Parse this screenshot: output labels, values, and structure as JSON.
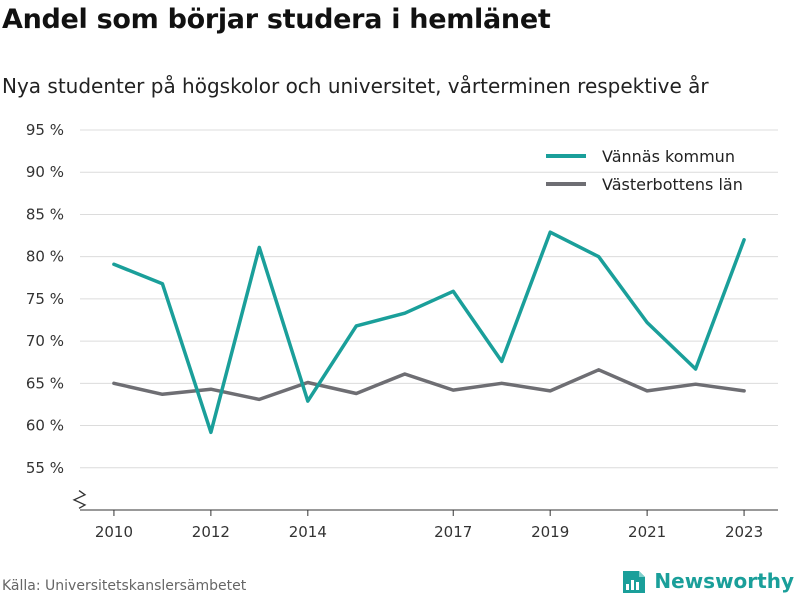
{
  "title": "Andel som börjar studera i hemlänet",
  "subtitle": "Nya studenter på högskolor och universitet, vårterminen respektive år",
  "source": "Källa: Universitetskanslersämbetet",
  "brand": {
    "name": "Newsworthy",
    "icon": "newsworthy-logo-icon",
    "color": "#1a9f9a"
  },
  "chart_data": {
    "type": "line",
    "x": [
      2010,
      2011,
      2012,
      2013,
      2014,
      2015,
      2016,
      2017,
      2018,
      2019,
      2020,
      2021,
      2022,
      2023
    ],
    "x_ticks": [
      2010,
      2012,
      2014,
      2017,
      2019,
      2021,
      2023
    ],
    "y_ticks": [
      55,
      60,
      65,
      70,
      75,
      80,
      85,
      90,
      95
    ],
    "y_tick_labels": [
      "55 %",
      "60 %",
      "65 %",
      "70 %",
      "75 %",
      "80 %",
      "85 %",
      "90 %",
      "95 %"
    ],
    "ylim": [
      50,
      95
    ],
    "y_axis_break": true,
    "grid": true,
    "legend_position": "top-right",
    "series": [
      {
        "name": "Vännäs kommun",
        "color": "#1a9f9a",
        "values": [
          79.1,
          76.8,
          59.2,
          81.1,
          62.9,
          71.8,
          73.3,
          75.9,
          67.6,
          82.9,
          80.0,
          72.2,
          66.7,
          82.0
        ]
      },
      {
        "name": "Västerbottens län",
        "color": "#6e6e73",
        "values": [
          65.0,
          63.7,
          64.3,
          63.1,
          65.1,
          63.8,
          66.1,
          64.2,
          65.0,
          64.1,
          66.6,
          64.1,
          64.9,
          64.1
        ]
      }
    ]
  }
}
